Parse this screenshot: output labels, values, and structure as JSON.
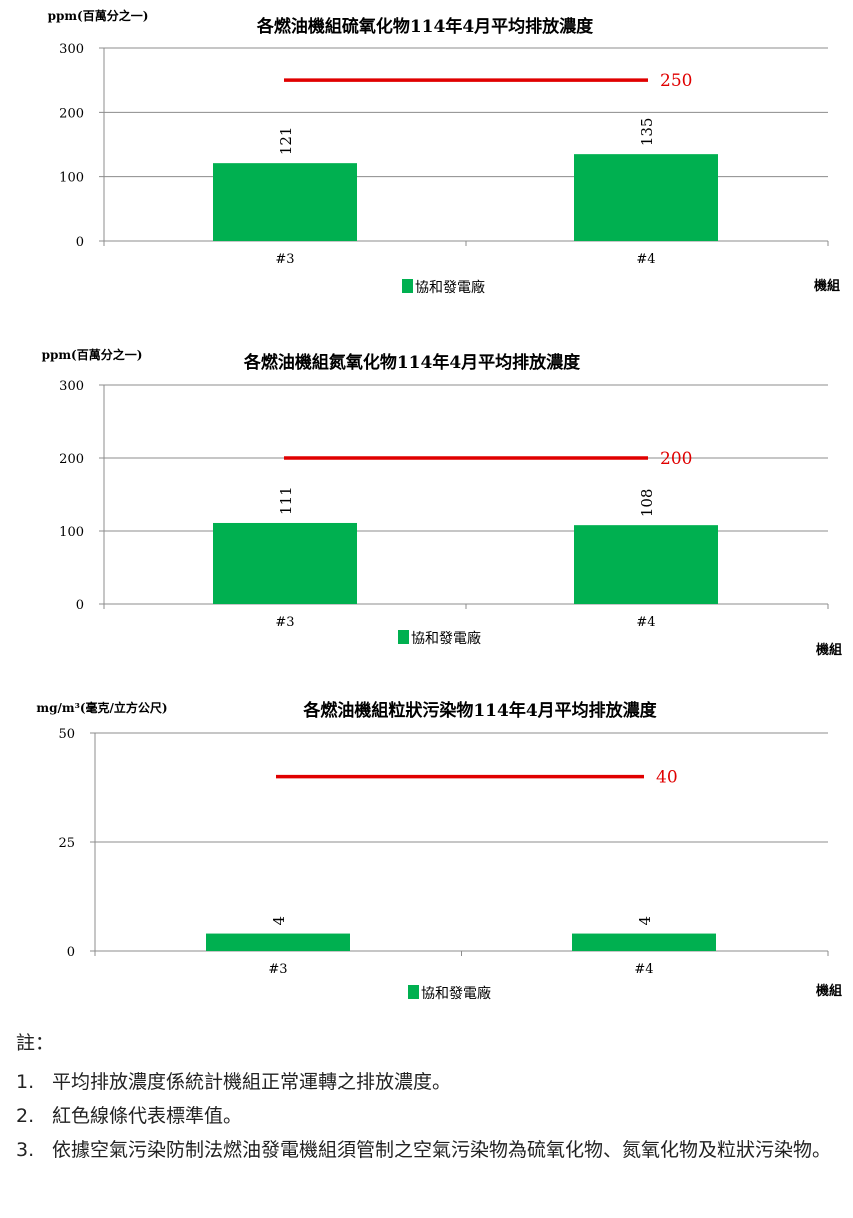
{
  "chart_data": [
    {
      "type": "bar",
      "title": "各燃油機組硫氧化物114年4月平均排放濃度",
      "ylabel": "ppm(百萬分之一)",
      "xlabel": "機組",
      "categories": [
        "#3",
        "#4"
      ],
      "series": [
        {
          "name": "協和發電廠",
          "values": [
            121,
            135
          ],
          "color": "#00b050"
        }
      ],
      "ylim": [
        0,
        300
      ],
      "yticks": [
        "0",
        "100",
        "200",
        "300"
      ],
      "standard": {
        "value": 250,
        "label": "250",
        "color": "#e00000"
      },
      "grid": true,
      "legend": "bottom"
    },
    {
      "type": "bar",
      "title": "各燃油機組氮氧化物114年4月平均排放濃度",
      "ylabel": "ppm(百萬分之一)",
      "xlabel": "機組",
      "categories": [
        "#3",
        "#4"
      ],
      "series": [
        {
          "name": "協和發電廠",
          "values": [
            111,
            108
          ],
          "color": "#00b050"
        }
      ],
      "ylim": [
        0,
        300
      ],
      "yticks": [
        "0",
        "100",
        "200",
        "300"
      ],
      "standard": {
        "value": 200,
        "label": "200",
        "color": "#e00000"
      },
      "grid": true,
      "legend": "bottom"
    },
    {
      "type": "bar",
      "title": "各燃油機組粒狀污染物114年4月平均排放濃度",
      "ylabel": "mg/m³(毫克/立方公尺)",
      "xlabel": "機組",
      "categories": [
        "#3",
        "#4"
      ],
      "series": [
        {
          "name": "協和發電廠",
          "values": [
            4,
            4
          ],
          "color": "#00b050"
        }
      ],
      "ylim": [
        0,
        50
      ],
      "yticks": [
        "0",
        "25",
        "50"
      ],
      "standard": {
        "value": 40,
        "label": "40",
        "color": "#e00000"
      },
      "grid": true,
      "legend": "bottom"
    }
  ],
  "notes": {
    "heading": "註：",
    "items": [
      {
        "num": "1.",
        "text": "平均排放濃度係統計機組正常運轉之排放濃度。"
      },
      {
        "num": "2.",
        "text": "紅色線條代表標準值。"
      },
      {
        "num": "3.",
        "text": "依據空氣污染防制法燃油發電機組須管制之空氣污染物為硫氧化物、氮氧化物及粒狀污染物。"
      }
    ]
  }
}
